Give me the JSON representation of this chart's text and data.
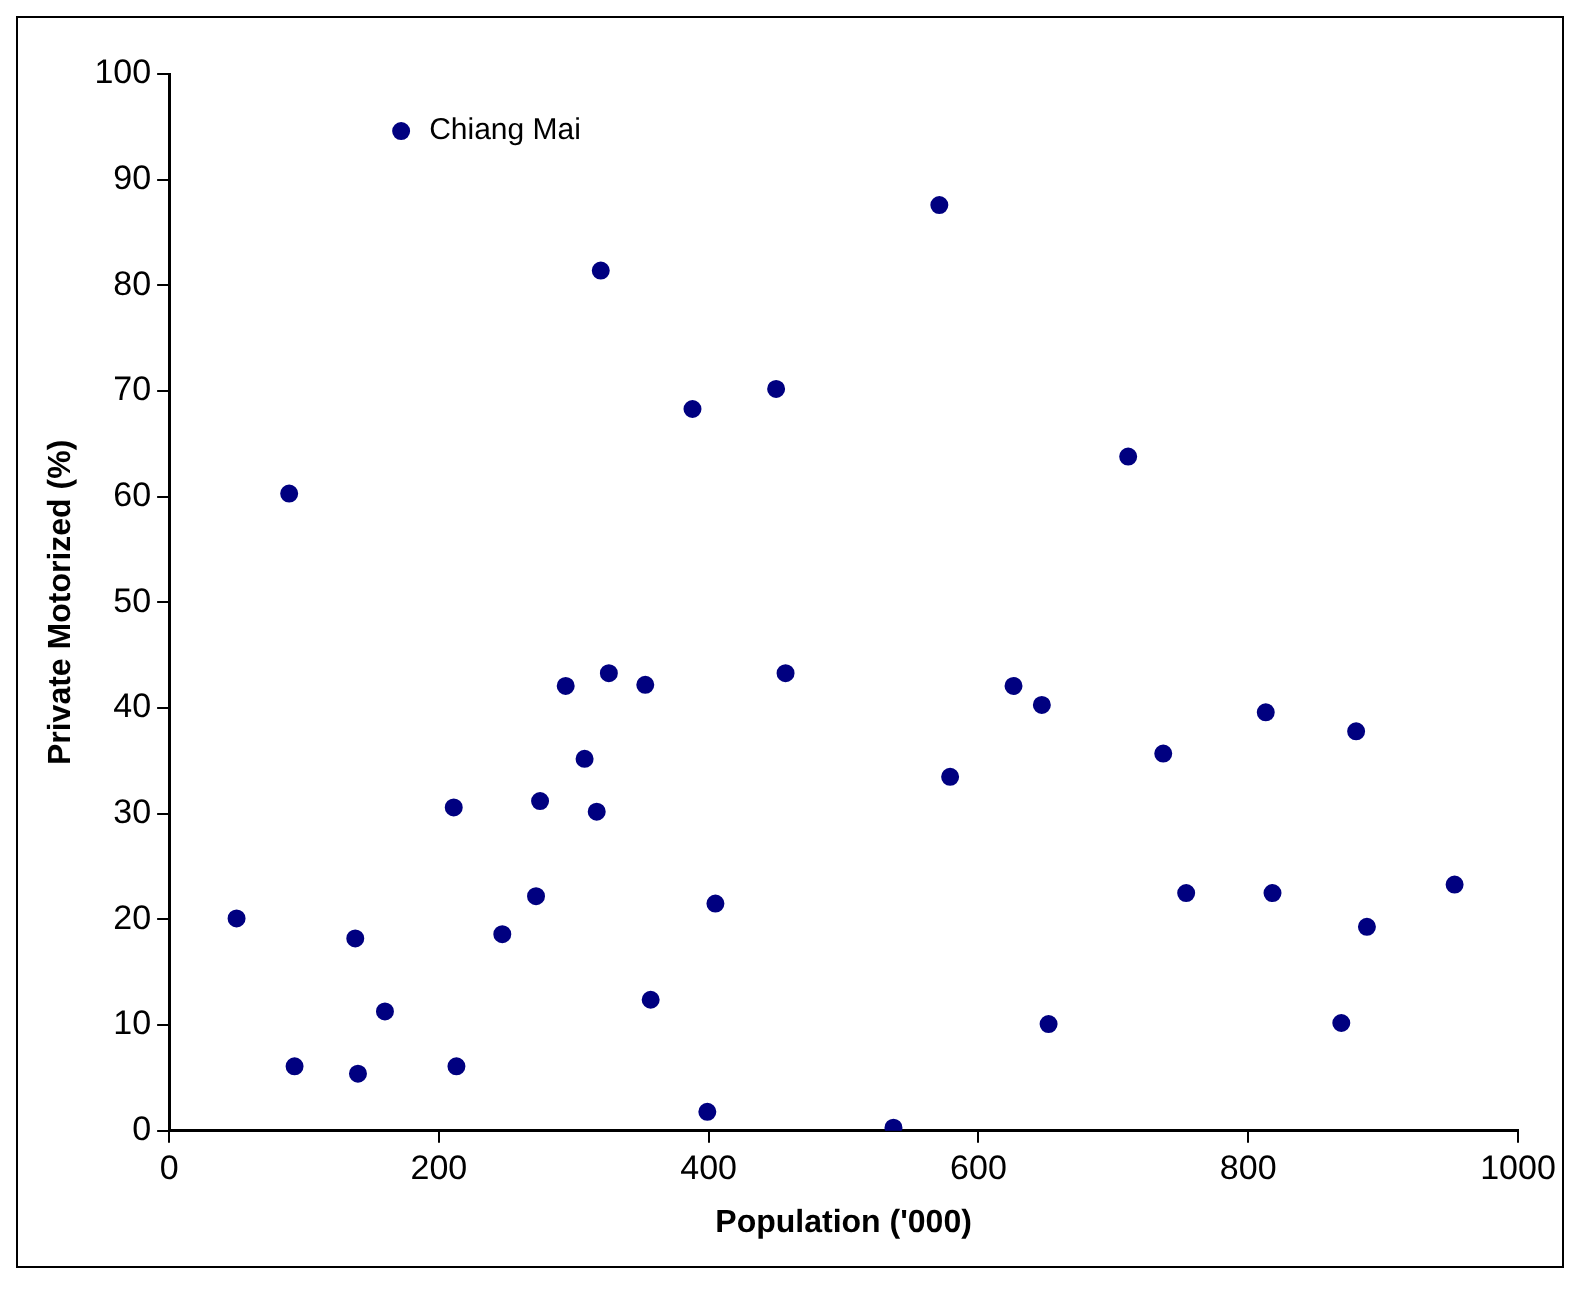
{
  "chart_data": {
    "type": "scatter",
    "xlabel": "Population ('000)",
    "ylabel": "Private Motorized (%)",
    "x": [
      172,
      320,
      388,
      450,
      89,
      571,
      711,
      294,
      326,
      353,
      457,
      308,
      211,
      275,
      317,
      272,
      405,
      50,
      138,
      247,
      160,
      357,
      93,
      140,
      213,
      399,
      626,
      647,
      579,
      737,
      813,
      880,
      754,
      818,
      953,
      888,
      652,
      869,
      537
    ],
    "values": [
      94.6,
      81.4,
      68.3,
      70.2,
      60.3,
      87.6,
      63.8,
      42.1,
      43.3,
      42.2,
      43.3,
      35.2,
      30.6,
      31.2,
      30.2,
      22.2,
      21.5,
      20.1,
      18.2,
      18.6,
      11.3,
      12.4,
      6.1,
      5.4,
      6.1,
      1.8,
      42.1,
      40.3,
      33.5,
      35.7,
      39.6,
      37.8,
      22.5,
      22.5,
      23.3,
      19.3,
      10.1,
      10.2,
      0.3
    ],
    "color": "#000080",
    "marker": "circle",
    "xlim": [
      0,
      1000
    ],
    "xticks": [
      0,
      200,
      400,
      600,
      800,
      1000
    ],
    "ylim": [
      0,
      100
    ],
    "yticks": [
      0,
      10,
      20,
      30,
      40,
      50,
      60,
      70,
      80,
      90,
      100
    ],
    "grid": false,
    "legend": false,
    "annotations": [
      {
        "text": "Chiang Mai",
        "x": 172,
        "y": 94.6
      }
    ]
  }
}
